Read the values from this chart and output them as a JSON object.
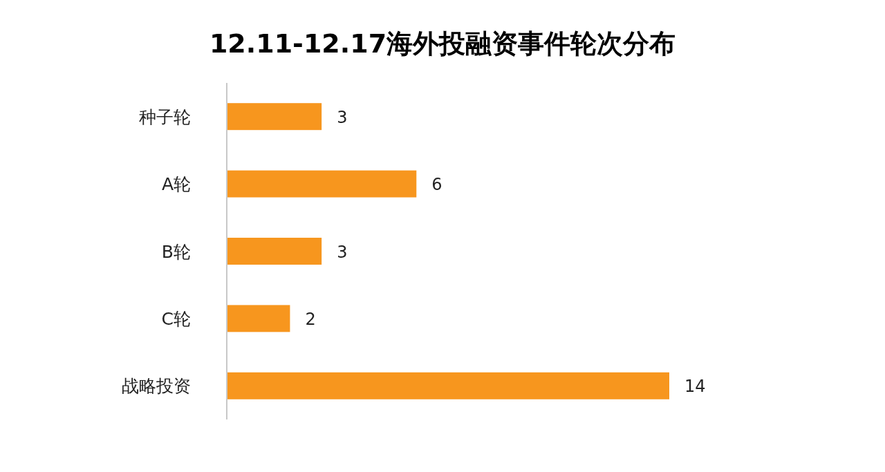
{
  "chart_data": {
    "type": "bar",
    "orientation": "horizontal",
    "title": "12.11-12.17海外投融资事件轮次分布",
    "categories": [
      "种子轮",
      "A轮",
      "B轮",
      "C轮",
      "战略投资"
    ],
    "values": [
      3,
      6,
      3,
      2,
      14
    ],
    "color": "#f7961e",
    "data_labels": true
  }
}
